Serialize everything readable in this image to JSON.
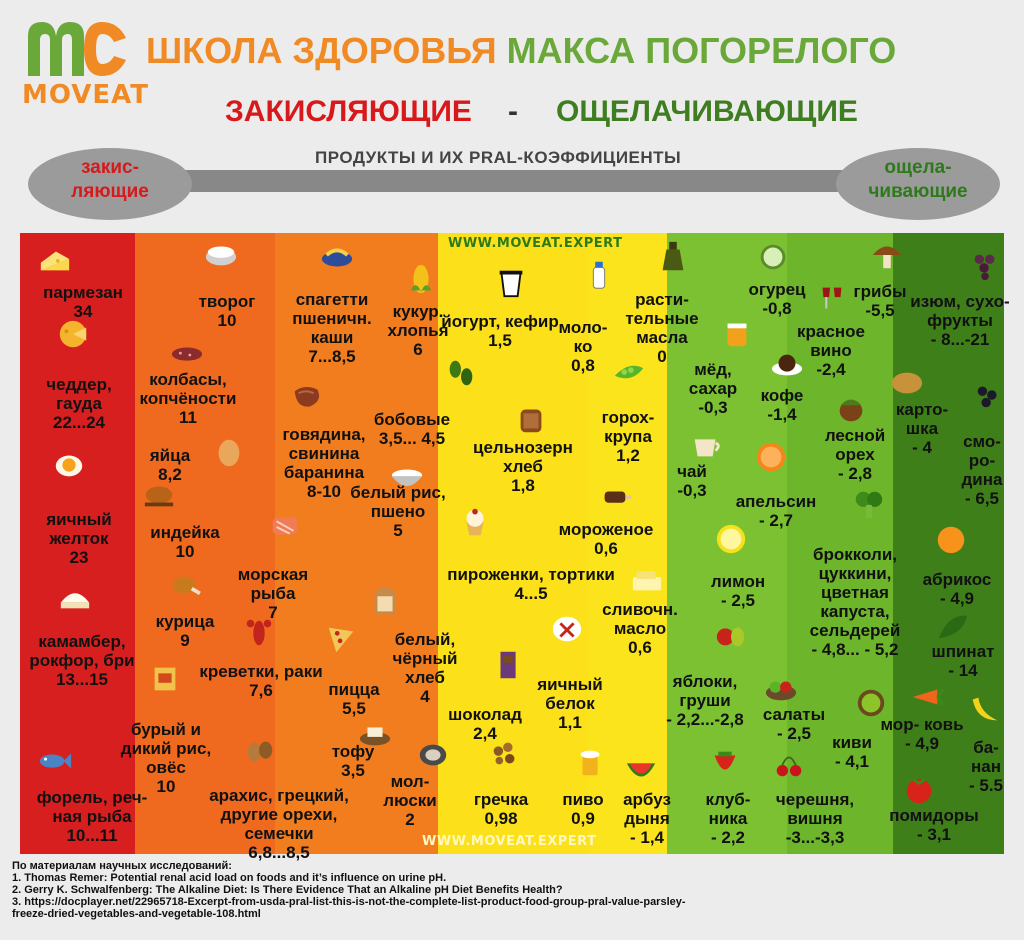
{
  "header": {
    "brand": "MOVEAT",
    "title_orange": "ШКОЛА ЗДОРОВЬЯ",
    "title_green": "МАКСА ПОГОРЕЛОГО",
    "acidifying": "ЗАКИСЛЯЮЩИЕ",
    "dash": "-",
    "alkalizing": "ОЩЕЛАЧИВАЮЩИЕ",
    "subtitle": "ПРОДУКТЫ И ИХ PRAL-КОЭФФИЦИЕНТЫ"
  },
  "scale": {
    "left_line1": "закис-",
    "left_line2": "ляющие",
    "right_line1": "ощела-",
    "right_line2": "чивающие"
  },
  "website": "WWW.MOVEAT.EXPERT",
  "colors": {
    "band_1": "#d81f1f",
    "band_2": "#ef6a1f",
    "band_3": "#f27d1f",
    "band_4": "#fbe01a",
    "band_5": "#fbe41c",
    "band_6": "#7cc132",
    "band_7": "#6db52a",
    "band_8": "#3f7f1a",
    "accent_orange": "#f08a24",
    "accent_green": "#6aa83a",
    "acid_red": "#d7191c",
    "alkaline_green": "#3f7d21"
  },
  "foods": [
    {
      "id": "parmesan",
      "name": "пармезан",
      "value": "34",
      "icon": "cheese-icon"
    },
    {
      "id": "cheddar",
      "name": "чеддер, гауда",
      "value": "22...24",
      "icon": "cheese-wheel-icon"
    },
    {
      "id": "yolk",
      "name": "яичный желток",
      "value": "23",
      "icon": "egg-yolk-icon"
    },
    {
      "id": "camembert",
      "name": "камамбер, рокфор, бри",
      "value": "13...15",
      "icon": "brie-icon"
    },
    {
      "id": "trout",
      "name": "форель, реч- ная рыба",
      "value": "10...11",
      "icon": "fish-icon"
    },
    {
      "id": "tvorog",
      "name": "творог",
      "value": "10",
      "icon": "cottage-cheese-icon"
    },
    {
      "id": "sausage",
      "name": "колбасы, копчёности",
      "value": "11",
      "icon": "sausage-icon"
    },
    {
      "id": "eggs",
      "name": "яйца",
      "value": "8,2",
      "icon": "egg-icon"
    },
    {
      "id": "turkey",
      "name": "индейка",
      "value": "10",
      "icon": "turkey-icon"
    },
    {
      "id": "chicken",
      "name": "курица",
      "value": "9",
      "icon": "chicken-leg-icon"
    },
    {
      "id": "brownrice",
      "name": "бурый и дикий рис, овёс",
      "value": "10",
      "icon": "oat-box-icon"
    },
    {
      "id": "pasta",
      "name": "спагетти пшеничн. каши",
      "value": "7...8,5",
      "icon": "pasta-icon"
    },
    {
      "id": "meat",
      "name": "говядина, свинина баранина",
      "value": "8-10",
      "icon": "steak-icon"
    },
    {
      "id": "seafish",
      "name": "морская рыба",
      "value": "7",
      "icon": "salmon-icon"
    },
    {
      "id": "shrimp",
      "name": "креветки, раки",
      "value": "7,6",
      "icon": "crayfish-icon"
    },
    {
      "id": "nuts",
      "name": "арахис, грецкий, другие орехи, семечки",
      "value": "6,8...8,5",
      "icon": "nuts-icon"
    },
    {
      "id": "pizza",
      "name": "пицца",
      "value": "5,5",
      "icon": "pizza-icon"
    },
    {
      "id": "tofu",
      "name": "тофу",
      "value": "3,5",
      "icon": "tofu-icon"
    },
    {
      "id": "corn",
      "name": "кукур. хлопья",
      "value": "6",
      "icon": "corn-icon"
    },
    {
      "id": "beans",
      "name": "бобовые",
      "value": "3,5... 4,5",
      "icon": "beans-icon"
    },
    {
      "id": "whiterice",
      "name": "белый рис, пшено",
      "value": "5",
      "icon": "rice-bowl-icon"
    },
    {
      "id": "bread",
      "name": "белый, чёрный хлеб",
      "value": "4",
      "icon": "bread-slice-icon"
    },
    {
      "id": "mollusks",
      "name": "мол- люски",
      "value": "2",
      "icon": "shell-icon"
    },
    {
      "id": "yogurt",
      "name": "йогурт, кефир",
      "value": "1,5",
      "icon": "yogurt-icon"
    },
    {
      "id": "milk",
      "name": "моло- ко",
      "value": "0,8",
      "icon": "milk-icon"
    },
    {
      "id": "wholebread",
      "name": "цельнозерн хлеб",
      "value": "1,8",
      "icon": "loaf-icon"
    },
    {
      "id": "cakes",
      "name": "пироженки, тортики",
      "value": "4...5",
      "icon": "cupcake-icon"
    },
    {
      "id": "icecream",
      "name": "мороженое",
      "value": "0,6",
      "icon": "ice-cream-icon"
    },
    {
      "id": "chocolate",
      "name": "шоколад",
      "value": "2,4",
      "icon": "chocolate-icon"
    },
    {
      "id": "eggwhite",
      "name": "яичный белок",
      "value": "1,1",
      "icon": "egg-white-icon"
    },
    {
      "id": "buckwheat",
      "name": "гречка",
      "value": "0,98",
      "icon": "buckwheat-icon"
    },
    {
      "id": "beer",
      "name": "пиво",
      "value": "0,9",
      "icon": "beer-icon"
    },
    {
      "id": "oil",
      "name": "расти- тельные масла",
      "value": "0",
      "icon": "oil-bottle-icon"
    },
    {
      "id": "peas",
      "name": "горох- крупа",
      "value": "1,2",
      "icon": "peas-icon"
    },
    {
      "id": "butter",
      "name": "сливочн. масло",
      "value": "0,6",
      "icon": "butter-icon"
    },
    {
      "id": "honey",
      "name": "мёд, сахар",
      "value": "-0,3",
      "icon": "honey-icon"
    },
    {
      "id": "tea",
      "name": "чай",
      "value": "-0,3",
      "icon": "tea-cup-icon"
    },
    {
      "id": "watermelon",
      "name": "арбуз дыня",
      "value": "- 1,4",
      "icon": "watermelon-icon"
    },
    {
      "id": "cucumber",
      "name": "огурец",
      "value": "-0,8",
      "icon": "cucumber-icon"
    },
    {
      "id": "wine",
      "name": "красное вино",
      "value": "-2,4",
      "icon": "wine-icon"
    },
    {
      "id": "coffee",
      "name": "кофе",
      "value": "-1,4",
      "icon": "coffee-icon"
    },
    {
      "id": "orange",
      "name": "апельсин",
      "value": "- 2,7",
      "icon": "orange-icon"
    },
    {
      "id": "lemon",
      "name": "лимон",
      "value": "- 2,5",
      "icon": "lemon-icon"
    },
    {
      "id": "apples",
      "name": "яблоки, груши",
      "value": "- 2,2...-2,8",
      "icon": "apple-pear-icon"
    },
    {
      "id": "strawberry",
      "name": "клуб- ника",
      "value": "- 2,2",
      "icon": "strawberry-icon"
    },
    {
      "id": "mushrooms",
      "name": "грибы",
      "value": "-5,5",
      "icon": "mushroom-icon"
    },
    {
      "id": "hazelnut",
      "name": "лесной орех",
      "value": "- 2,8",
      "icon": "hazelnut-icon"
    },
    {
      "id": "broccoli",
      "name": "брокколи, цуккини, цветная капуста, сельдерей",
      "value": "- 4,8... - 5,2",
      "icon": "broccoli-icon"
    },
    {
      "id": "salads",
      "name": "салаты",
      "value": "- 2,5",
      "icon": "salad-icon"
    },
    {
      "id": "kiwi",
      "name": "киви",
      "value": "- 4,1",
      "icon": "kiwi-icon"
    },
    {
      "id": "cherry",
      "name": "черешня, вишня",
      "value": "-3...-3,3",
      "icon": "cherry-icon"
    },
    {
      "id": "raisins",
      "name": "изюм, сухо- фрукты",
      "value": "- 8...-21",
      "icon": "grapes-icon"
    },
    {
      "id": "potato",
      "name": "карто- шка",
      "value": "- 4",
      "icon": "potato-icon"
    },
    {
      "id": "currant",
      "name": "смо- ро- дина",
      "value": "- 6,5",
      "icon": "currant-icon"
    },
    {
      "id": "apricot",
      "name": "абрикос",
      "value": "- 4,9",
      "icon": "apricot-icon"
    },
    {
      "id": "spinach",
      "name": "шпинат",
      "value": "- 14",
      "icon": "spinach-icon"
    },
    {
      "id": "carrot",
      "name": "мор- ковь",
      "value": "- 4,9",
      "icon": "carrot-icon"
    },
    {
      "id": "banana",
      "name": "ба- нан",
      "value": "- 5.5",
      "icon": "banana-icon"
    },
    {
      "id": "tomato",
      "name": "помидоры",
      "value": "- 3,1",
      "icon": "tomato-icon"
    }
  ],
  "references": {
    "intro": "По материалам научных исследований:",
    "r1": "1. Thomas Remer: Potential renal acid load on foods and it’s influence on urine pH.",
    "r2": "2. Gerry K. Schwalfenberg: The Alkaline Diet: Is There Evidence That an Alkaline pH Diet Benefits Health?",
    "r3": "3. https://docplayer.net/22965718-Excerpt-from-usda-pral-list-this-is-not-the-complete-list-product-food-group-pral-value-parsley-",
    "r3b": "freeze-dried-vegetables-and-vegetable-108.html"
  }
}
